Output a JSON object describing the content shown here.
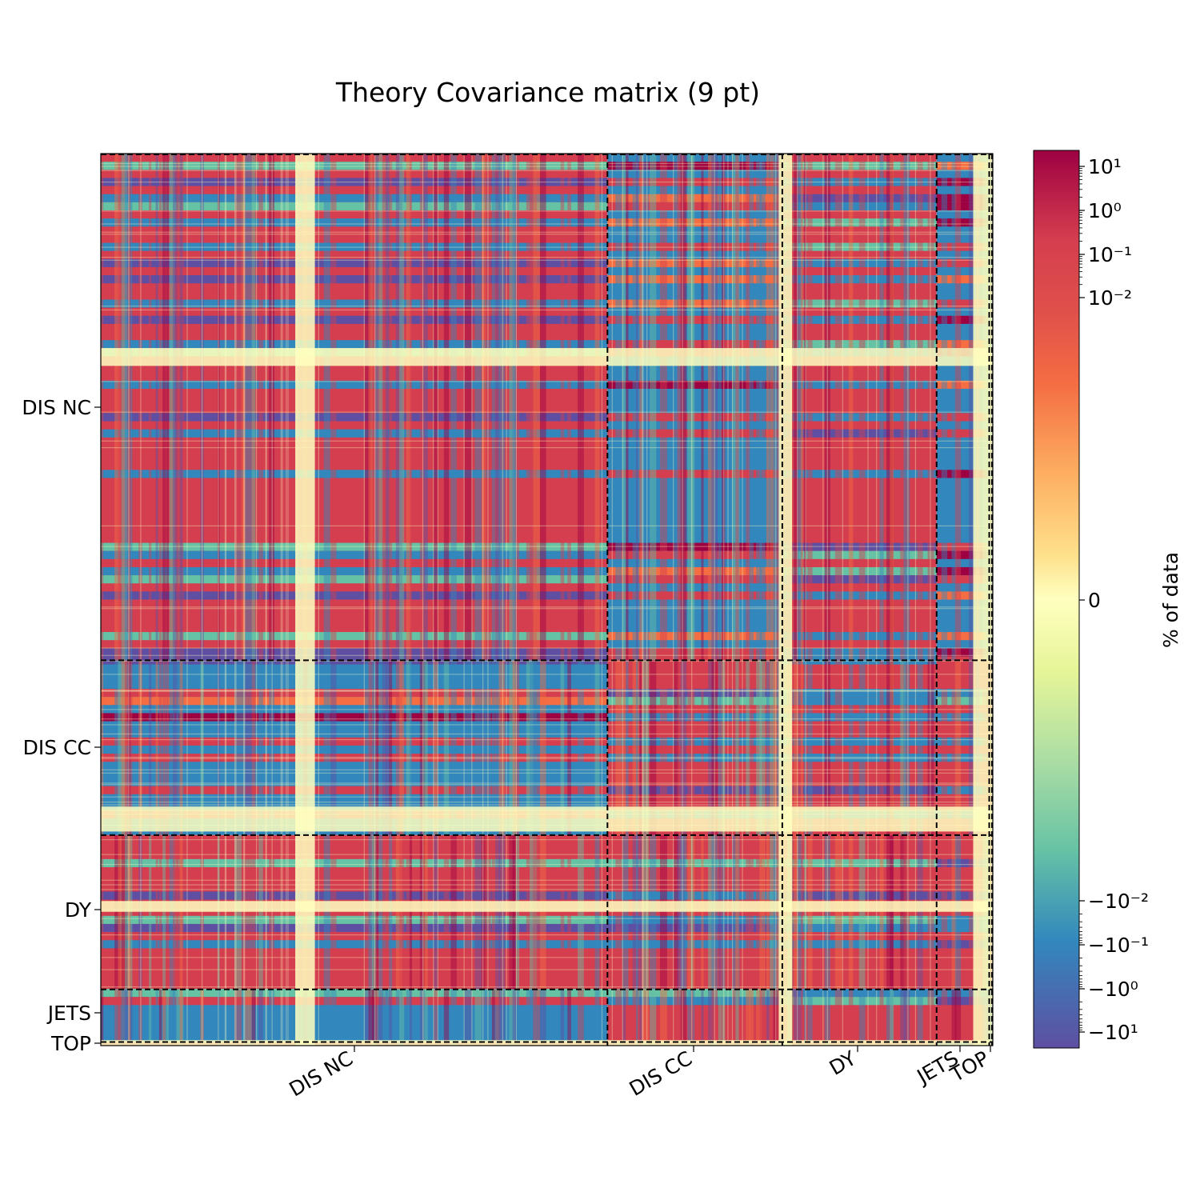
{
  "chart_data": {
    "type": "heatmap",
    "title": "Theory Covariance matrix (9 pt)",
    "xlabel": "",
    "ylabel": "",
    "colorbar_label": "% of data",
    "colormap": "Spectral_r (symmetric log scale)",
    "grid": false,
    "blocks": [
      {
        "name": "DIS NC",
        "start": 0,
        "end": 0.568
      },
      {
        "name": "DIS CC",
        "start": 0.568,
        "end": 0.764
      },
      {
        "name": "DY",
        "start": 0.764,
        "end": 0.937
      },
      {
        "name": "JETS",
        "start": 0.937,
        "end": 0.996
      },
      {
        "name": "TOP",
        "start": 0.996,
        "end": 1.0
      }
    ],
    "x_tick_labels": [
      "DIS NC",
      "DIS CC",
      "DY",
      "JETS",
      "TOP"
    ],
    "y_tick_labels": [
      "DIS NC",
      "DIS CC",
      "DY",
      "JETS",
      "TOP"
    ],
    "colorbar_ticks": [
      "10¹",
      "10⁰",
      "10⁻¹",
      "10⁻²",
      "0",
      "−10⁻²",
      "−10⁻¹",
      "−10⁰",
      "−10¹"
    ],
    "block_sign_pattern": [
      [
        1,
        -1,
        1,
        -1,
        1
      ],
      [
        -1,
        1,
        1,
        1,
        1
      ],
      [
        1,
        1,
        1,
        1,
        1
      ],
      [
        -1,
        1,
        1,
        1,
        -1
      ],
      [
        1,
        1,
        1,
        -1,
        1
      ]
    ]
  },
  "colors": {
    "positive_strong": "#9e0142",
    "positive": "#d53e4f",
    "positive_weak": "#f46d43",
    "near_zero": "#ffffbf",
    "negative_weak": "#66c2a5",
    "negative": "#3288bd",
    "negative_strong": "#5e4fa2"
  }
}
